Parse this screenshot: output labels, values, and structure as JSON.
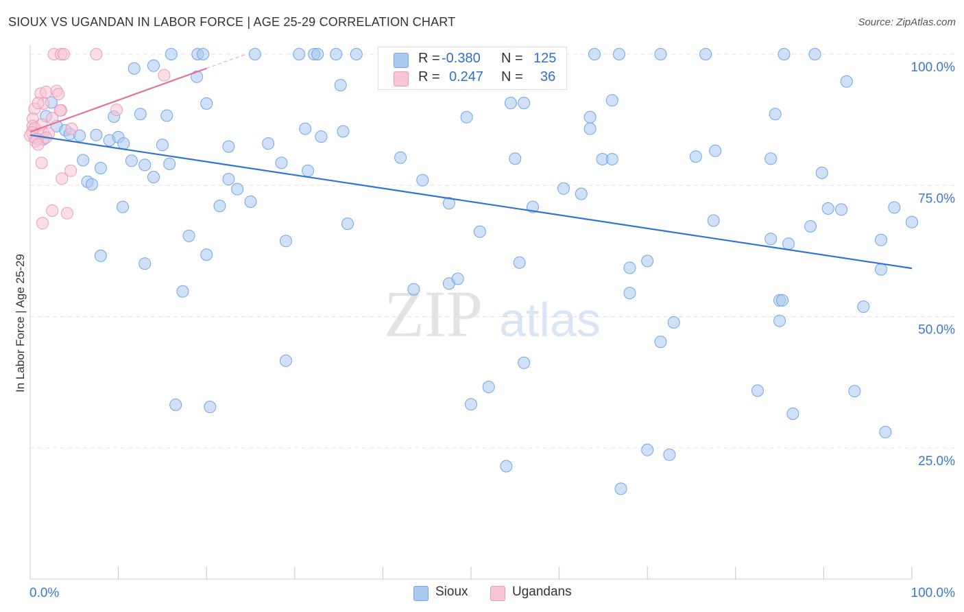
{
  "title": "SIOUX VS UGANDAN IN LABOR FORCE | AGE 25-29 CORRELATION CHART",
  "source": "Source: ZipAtlas.com",
  "watermark": {
    "zip": "ZIP",
    "atlas": "atlas"
  },
  "legend": {
    "r_label": "R =",
    "n_label": "N =",
    "rows": [
      {
        "name": "Sioux",
        "r": "-0.380",
        "n": "125",
        "color": "#6ea6e8"
      },
      {
        "name": "Ugandans",
        "r": "0.247",
        "n": "36",
        "color": "#f09ab8"
      }
    ]
  },
  "colors": {
    "sioux_fill": "#a9c9f1",
    "sioux_stroke": "#6ea6e8",
    "sioux_line": "#2f74d0",
    "ugandan_fill": "#f8c4d6",
    "ugandan_stroke": "#ee9ab7",
    "ugandan_line": "#e8709a",
    "tick_label": "#3b78cc",
    "grid": "#e3e3e3"
  },
  "chart_data": {
    "type": "scatter",
    "title": "SIOUX VS UGANDAN IN LABOR FORCE | AGE 25-29 CORRELATION CHART",
    "xlabel": "",
    "ylabel": "In Labor Force | Age 25-29",
    "xlim": [
      0,
      100
    ],
    "ylim": [
      0,
      100
    ],
    "x_tick_labels": [
      "0.0%",
      "100.0%"
    ],
    "y_ticks": [
      25,
      50,
      75,
      100
    ],
    "y_tick_labels": [
      "25.0%",
      "50.0%",
      "75.0%",
      "100.0%"
    ],
    "grid": true,
    "legend_position": "bottom",
    "series": [
      {
        "name": "Sioux",
        "trend": {
          "x": [
            0,
            100
          ],
          "y": [
            84.6,
            59.2
          ]
        },
        "points": [
          [
            0.5,
            84.1
          ],
          [
            1.5,
            83.8
          ],
          [
            3,
            86.3
          ],
          [
            4,
            85.5
          ],
          [
            4.5,
            84.8
          ],
          [
            5.6,
            84.5
          ],
          [
            2.4,
            90.8
          ],
          [
            1.8,
            88.2
          ],
          [
            16,
            100
          ],
          [
            19,
            100
          ],
          [
            19.6,
            100
          ],
          [
            25.5,
            100
          ],
          [
            30.5,
            100
          ],
          [
            32.2,
            100
          ],
          [
            32.6,
            100
          ],
          [
            34.7,
            100
          ],
          [
            37,
            100
          ],
          [
            54.5,
            100
          ],
          [
            64,
            100
          ],
          [
            66.8,
            100
          ],
          [
            71.5,
            100
          ],
          [
            76.6,
            100
          ],
          [
            85.5,
            100
          ],
          [
            89,
            100
          ],
          [
            11.8,
            97.3
          ],
          [
            14,
            97.8
          ],
          [
            18.9,
            95.7
          ],
          [
            35.2,
            94.1
          ],
          [
            92.6,
            94.8
          ],
          [
            20,
            90.6
          ],
          [
            56,
            90.7
          ],
          [
            66,
            91.2
          ],
          [
            54.5,
            90.7
          ],
          [
            9.5,
            88.1
          ],
          [
            12.5,
            88.6
          ],
          [
            15.5,
            88.3
          ],
          [
            49.5,
            88
          ],
          [
            63.5,
            88
          ],
          [
            84.5,
            88.6
          ],
          [
            7.5,
            84.6
          ],
          [
            9,
            83.6
          ],
          [
            10,
            84.2
          ],
          [
            10.6,
            83
          ],
          [
            15,
            82.7
          ],
          [
            22.5,
            82.4
          ],
          [
            27,
            83
          ],
          [
            31.2,
            85.8
          ],
          [
            33,
            84.3
          ],
          [
            35.5,
            85.3
          ],
          [
            63.5,
            85.8
          ],
          [
            6,
            79.8
          ],
          [
            8,
            78.3
          ],
          [
            11.5,
            79.7
          ],
          [
            13,
            78.9
          ],
          [
            15.8,
            79.1
          ],
          [
            28.5,
            79.3
          ],
          [
            42,
            80.3
          ],
          [
            55,
            80.1
          ],
          [
            64.9,
            80
          ],
          [
            66,
            80
          ],
          [
            75.5,
            80.5
          ],
          [
            77.7,
            81.6
          ],
          [
            84,
            80.1
          ],
          [
            6.5,
            75.7
          ],
          [
            7,
            75.2
          ],
          [
            14,
            76.6
          ],
          [
            22.5,
            76.2
          ],
          [
            23.5,
            74.3
          ],
          [
            31.5,
            77.8
          ],
          [
            44.5,
            76
          ],
          [
            60.5,
            74.4
          ],
          [
            62.5,
            73.4
          ],
          [
            89.8,
            77.4
          ],
          [
            10.5,
            70.9
          ],
          [
            21.5,
            71.1
          ],
          [
            25,
            71.9
          ],
          [
            47.5,
            71.6
          ],
          [
            57,
            70.9
          ],
          [
            90.5,
            70.6
          ],
          [
            92,
            70.4
          ],
          [
            98,
            70.8
          ],
          [
            36,
            67.7
          ],
          [
            51,
            66.2
          ],
          [
            77.5,
            68.3
          ],
          [
            88.5,
            67.2
          ],
          [
            100,
            68
          ],
          [
            18,
            65.4
          ],
          [
            29,
            64.4
          ],
          [
            84,
            64.8
          ],
          [
            86,
            63.9
          ],
          [
            96.5,
            64.6
          ],
          [
            8,
            61.6
          ],
          [
            13,
            60.1
          ],
          [
            20,
            61.8
          ],
          [
            55.5,
            60.3
          ],
          [
            68,
            59.3
          ],
          [
            70,
            60.6
          ],
          [
            96.5,
            59
          ],
          [
            17.3,
            54.8
          ],
          [
            43.5,
            55.2
          ],
          [
            47.5,
            56.3
          ],
          [
            48.5,
            57.2
          ],
          [
            68,
            54.5
          ],
          [
            85,
            53.1
          ],
          [
            85.3,
            53.1
          ],
          [
            94.5,
            51.9
          ],
          [
            73,
            48.9
          ],
          [
            85,
            49.2
          ],
          [
            71.5,
            45.2
          ],
          [
            29,
            41.6
          ],
          [
            56,
            41.2
          ],
          [
            52,
            36.6
          ],
          [
            82.5,
            35.9
          ],
          [
            93.5,
            35.8
          ],
          [
            50,
            33.3
          ],
          [
            16.5,
            33.2
          ],
          [
            20.4,
            32.8
          ],
          [
            86.5,
            31.5
          ],
          [
            97,
            28
          ],
          [
            70,
            24.6
          ],
          [
            72.5,
            23.7
          ],
          [
            54,
            21.5
          ],
          [
            67,
            17.2
          ]
        ]
      },
      {
        "name": "Ugandans",
        "trend": {
          "x": [
            0,
            20
          ],
          "y": [
            85.2,
            97.3
          ]
        },
        "trend_extension": {
          "x": [
            20,
            24.5
          ],
          "y": [
            97.3,
            100
          ]
        },
        "points": [
          [
            2.7,
            100
          ],
          [
            3.5,
            100
          ],
          [
            3.8,
            100
          ],
          [
            7.5,
            100
          ],
          [
            15.2,
            96
          ],
          [
            1.2,
            92.5
          ],
          [
            1.8,
            92.8
          ],
          [
            3,
            93
          ],
          [
            3.2,
            92.4
          ],
          [
            3.5,
            89.3
          ],
          [
            1.5,
            90.6
          ],
          [
            0.5,
            89.6
          ],
          [
            0.9,
            90.7
          ],
          [
            3.4,
            89.3
          ],
          [
            9.8,
            89.4
          ],
          [
            0.3,
            87.7
          ],
          [
            2.5,
            87.8
          ],
          [
            0.3,
            86.3
          ],
          [
            1.3,
            86.6
          ],
          [
            0.5,
            85.9
          ],
          [
            4.7,
            85.8
          ],
          [
            0.2,
            85.1
          ],
          [
            1.5,
            85
          ],
          [
            2.1,
            84.9
          ],
          [
            0,
            84.5
          ],
          [
            1.8,
            84.1
          ],
          [
            0.8,
            83.8
          ],
          [
            0.6,
            83.4
          ],
          [
            0.9,
            82.8
          ],
          [
            1.3,
            79.3
          ],
          [
            4.6,
            77.8
          ],
          [
            3.6,
            76.3
          ],
          [
            2.5,
            70.2
          ],
          [
            4.2,
            69.7
          ],
          [
            1.4,
            67.8
          ]
        ]
      }
    ]
  }
}
